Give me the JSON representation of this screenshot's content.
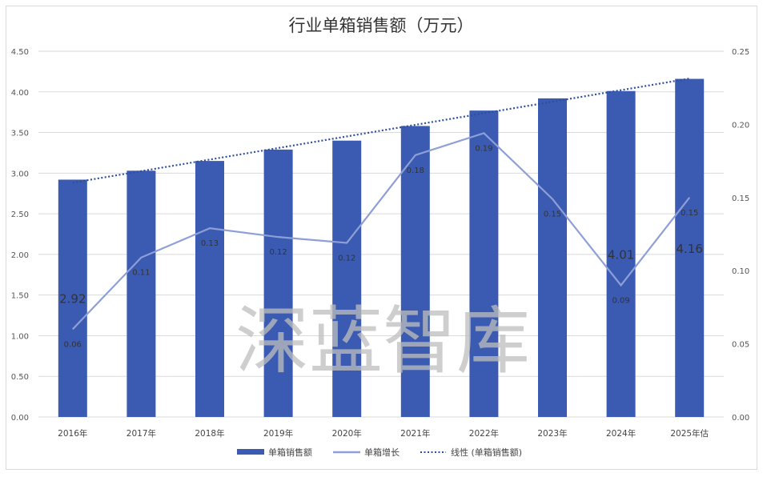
{
  "chart_data": {
    "type": "bar",
    "title": "行业单箱销售额（万元）",
    "categories": [
      "2016年",
      "2017年",
      "2018年",
      "2019年",
      "2020年",
      "2021年",
      "2022年",
      "2023年",
      "2024年",
      "2025年估"
    ],
    "series": [
      {
        "name": "单箱销售额",
        "type": "bar",
        "axis": "left",
        "color": "#3a5bb1",
        "values": [
          2.92,
          3.03,
          3.15,
          3.29,
          3.4,
          3.58,
          3.77,
          3.92,
          4.01,
          4.16
        ],
        "data_labels": [
          "2.92",
          "",
          "",
          "",
          "",
          "",
          "",
          "",
          "4.01",
          "4.16"
        ]
      },
      {
        "name": "单箱增长",
        "type": "line",
        "axis": "right",
        "color": "#8e9fd8",
        "values": [
          0.06,
          0.109,
          0.129,
          0.123,
          0.119,
          0.179,
          0.194,
          0.149,
          0.09,
          0.15
        ],
        "data_labels": [
          "0.06",
          "0.11",
          "0.13",
          "0.12",
          "0.12",
          "0.18",
          "0.19",
          "0.15",
          "0.09",
          "0.15"
        ]
      },
      {
        "name": "线性 (单箱销售额)",
        "type": "trendline-linear",
        "axis": "left",
        "color": "#2f4f9e"
      }
    ],
    "y_left": {
      "range": [
        0,
        4.5
      ],
      "ticks": [
        "0.00",
        "0.50",
        "1.00",
        "1.50",
        "2.00",
        "2.50",
        "3.00",
        "3.50",
        "4.00",
        "4.50"
      ]
    },
    "y_right": {
      "range": [
        0,
        0.25
      ],
      "ticks": [
        "0.00",
        "0.05",
        "0.10",
        "0.15",
        "0.20",
        "0.25"
      ]
    },
    "grid": true,
    "legend": "bottom",
    "watermark": "深蓝智库"
  }
}
